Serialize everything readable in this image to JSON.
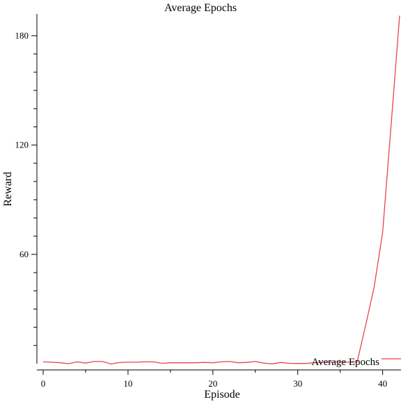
{
  "chart_data": {
    "type": "line",
    "title": "Average Epochs",
    "xlabel": "Episode",
    "ylabel": "Reward",
    "xlim": [
      0,
      42
    ],
    "ylim": [
      0,
      192
    ],
    "x_ticks_major": [
      0,
      10,
      20,
      30,
      40
    ],
    "x_ticks_minor": [
      5,
      15,
      25,
      35
    ],
    "y_ticks_major": [
      60,
      120,
      180
    ],
    "y_ticks_minor": [
      10,
      20,
      30,
      40,
      50,
      70,
      80,
      90,
      100,
      110,
      130,
      140,
      150,
      160,
      170
    ],
    "grid": false,
    "legend": "bottom-right",
    "series": [
      {
        "name": "Average Epochs",
        "color": "#e8424f",
        "x": [
          0,
          1,
          2,
          3,
          4,
          5,
          6,
          7,
          8,
          9,
          10,
          11,
          12,
          13,
          14,
          15,
          16,
          17,
          18,
          19,
          20,
          21,
          22,
          23,
          24,
          25,
          26,
          27,
          28,
          29,
          30,
          31,
          32,
          33,
          34,
          35,
          36,
          37,
          38,
          39,
          40,
          41,
          42
        ],
        "y": [
          1,
          0.8,
          0.5,
          0,
          1,
          0.3,
          1.2,
          1.2,
          -0.2,
          0.6,
          0.8,
          0.8,
          1,
          1,
          0.2,
          0.5,
          0.5,
          0.5,
          0.5,
          0.7,
          0.5,
          1,
          1.2,
          0.5,
          0.7,
          1.2,
          0.3,
          -0.1,
          0.7,
          0.2,
          0.1,
          0.1,
          0.5,
          0.8,
          0.8,
          1,
          0.8,
          1,
          21,
          42,
          72,
          131,
          191
        ]
      }
    ]
  }
}
